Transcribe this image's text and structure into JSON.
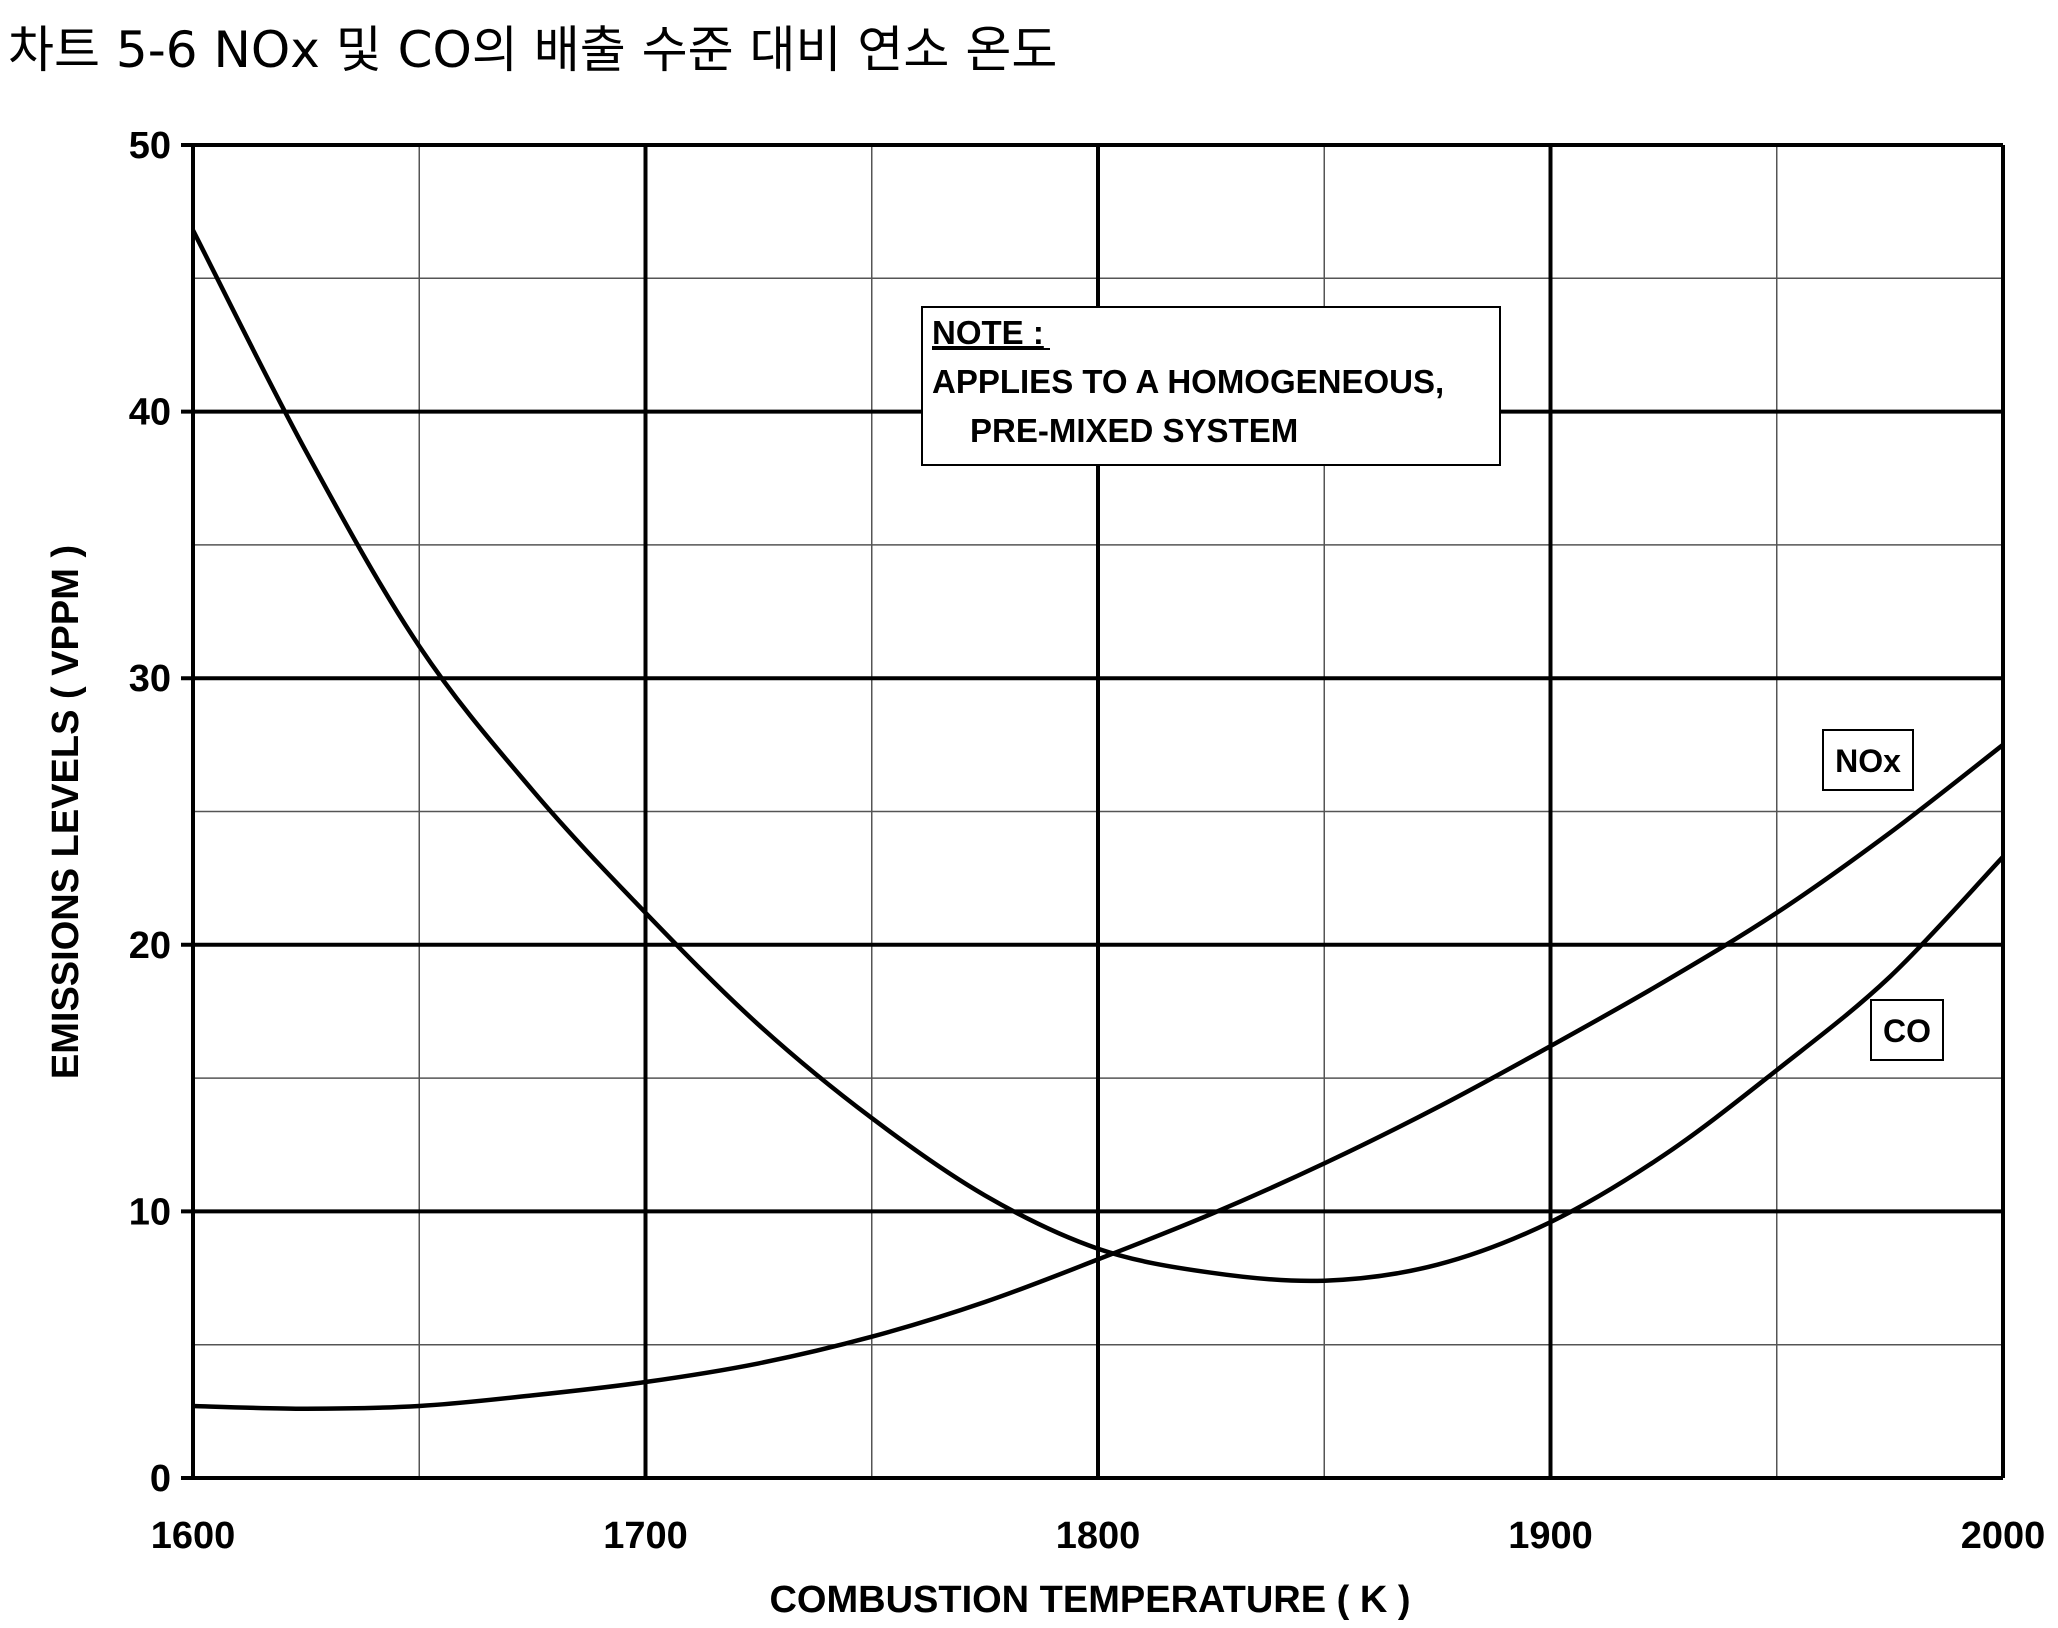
{
  "caption": "차트 5-6 NOx 및 CO의 배출 수준 대비 연소 온도",
  "note": {
    "heading": "NOTE :",
    "line1": "APPLIES TO A HOMOGENEOUS,",
    "line2": "PRE-MIXED SYSTEM"
  },
  "chart_data": {
    "type": "line",
    "title": "",
    "xlabel": "COMBUSTION TEMPERATURE ( K )",
    "ylabel": "EMISSIONS LEVELS ( VPPM )",
    "xlim": [
      1600,
      2000
    ],
    "ylim": [
      0,
      50
    ],
    "x_ticks": [
      1600,
      1700,
      1800,
      1900,
      2000
    ],
    "y_ticks": [
      0,
      10,
      20,
      30,
      40,
      50
    ],
    "x_minor_step": 50,
    "y_minor_step": 5,
    "grid": true,
    "series": [
      {
        "name": "NOx",
        "x": [
          1600,
          1625,
          1650,
          1675,
          1700,
          1725,
          1750,
          1775,
          1800,
          1825,
          1850,
          1875,
          1900,
          1925,
          1950,
          1975,
          2000
        ],
        "y": [
          2.7,
          2.6,
          2.7,
          3.1,
          3.6,
          4.3,
          5.3,
          6.6,
          8.2,
          9.9,
          11.8,
          13.9,
          16.2,
          18.6,
          21.2,
          24.2,
          27.5
        ]
      },
      {
        "name": "CO",
        "x": [
          1600,
          1625,
          1650,
          1675,
          1700,
          1725,
          1750,
          1775,
          1800,
          1825,
          1850,
          1875,
          1900,
          1925,
          1950,
          1975,
          2000
        ],
        "y": [
          46.8,
          38.5,
          31.2,
          25.8,
          21.2,
          17.0,
          13.5,
          10.6,
          8.6,
          7.7,
          7.4,
          8.0,
          9.6,
          12.1,
          15.3,
          18.8,
          23.3
        ]
      }
    ]
  }
}
